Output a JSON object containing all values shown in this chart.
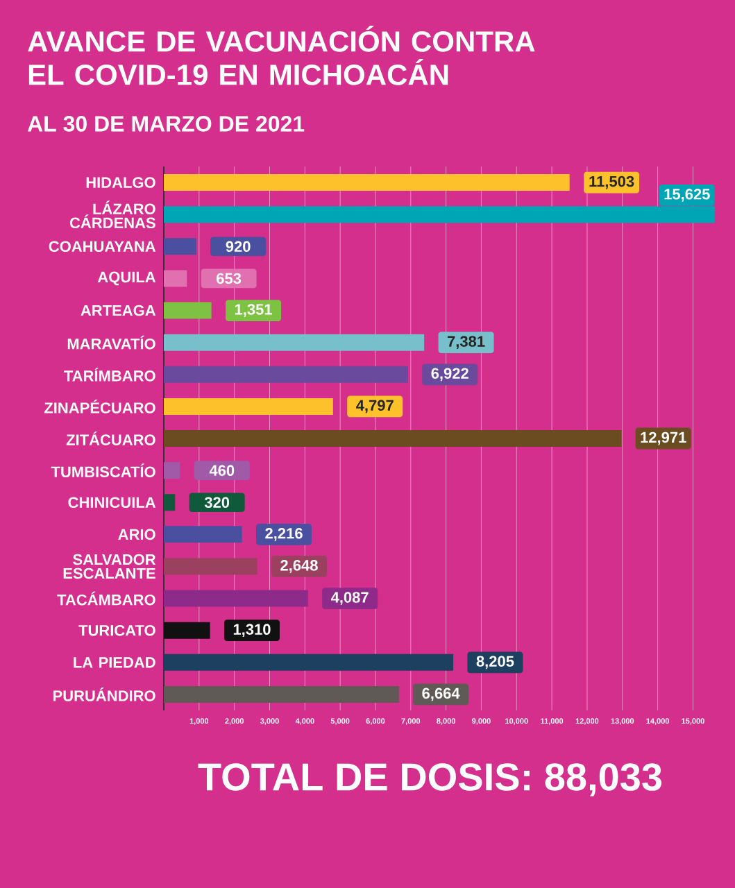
{
  "chart_data": {
    "type": "bar",
    "orientation": "horizontal",
    "title": "AVANCE DE VACUNACIÓN CONTRA EL COVID-19 EN MICHOACÁN",
    "subtitle": "AL 30 DE MARZO DE 2021",
    "categories": [
      "HIDALGO",
      "LÁZARO CÁRDENAS",
      "COAHUAYANA",
      "AQUILA",
      "ARTEAGA",
      "MARAVATÍO",
      "TARÍMBARO",
      "ZINAPÉCUARO",
      "ZITÁCUARO",
      "TUMBISCATÍO",
      "CHINICUILA",
      "ARIO",
      "SALVADOR ESCALANTE",
      "TACÁMBARO",
      "TURICATO",
      "LA PIEDAD",
      "PURUÁNDIRO"
    ],
    "values": [
      11503,
      15625,
      920,
      653,
      1351,
      7381,
      6922,
      4797,
      12971,
      460,
      320,
      2216,
      2648,
      4087,
      1310,
      8205,
      6664
    ],
    "value_labels": [
      "11,503",
      "15,625",
      "920",
      "653",
      "1,351",
      "7,381",
      "6,922",
      "4,797",
      "12,971",
      "460",
      "320",
      "2,216",
      "2,648",
      "4,087",
      "1,310",
      "8,205",
      "6,664"
    ],
    "colors": [
      "#fcc12b",
      "#00a5b5",
      "#4a4fa0",
      "#e070b0",
      "#7dc242",
      "#78bfcc",
      "#6a4a9c",
      "#fcc12b",
      "#6b4c20",
      "#a05aa8",
      "#0f5a3a",
      "#4a4fa0",
      "#9c4060",
      "#8e2a8a",
      "#111111",
      "#1e4060",
      "#5f5a55"
    ],
    "xlim": [
      0,
      15700
    ],
    "xticks": [
      {
        "value": 1000,
        "label": "1,000"
      },
      {
        "value": 2000,
        "label": "2,000"
      },
      {
        "value": 3000,
        "label": "3,000"
      },
      {
        "value": 4000,
        "label": "4,000"
      },
      {
        "value": 5000,
        "label": "5,000"
      },
      {
        "value": 6000,
        "label": "6,000"
      },
      {
        "value": 7000,
        "label": "7,000"
      },
      {
        "value": 8000,
        "label": "8,000"
      },
      {
        "value": 9000,
        "label": "9,000"
      },
      {
        "value": 10000,
        "label": "10,000"
      },
      {
        "value": 11000,
        "label": "11,000"
      },
      {
        "value": 12000,
        "label": "12,000"
      },
      {
        "value": 13000,
        "label": "13,000"
      },
      {
        "value": 14000,
        "label": "14,000"
      },
      {
        "value": 15000,
        "label": "15,000"
      }
    ],
    "grid": "x",
    "tick_labels": "xy",
    "annotations": [
      "TOTAL DE DOSIS: 88,033"
    ]
  }
}
